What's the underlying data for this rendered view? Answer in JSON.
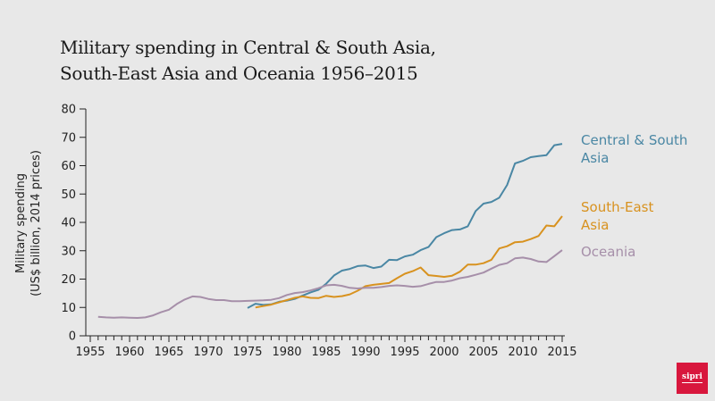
{
  "chart_data": {
    "type": "line",
    "title": "Military spending in Central & South Asia, South-East Asia and Oceania 1956–2015",
    "title_lines": [
      "Military spending in Central & South Asia,",
      "South-East Asia and Oceania 1956–2015"
    ],
    "xlabel": "",
    "ylabel_lines": [
      "Military spending",
      "(US$ billion, 2014 prices)"
    ],
    "xlim": [
      1955,
      2015
    ],
    "ylim": [
      0,
      80
    ],
    "x_ticks": [
      1955,
      1960,
      1965,
      1970,
      1975,
      1980,
      1985,
      1990,
      1995,
      2000,
      2005,
      2010,
      2015
    ],
    "y_ticks": [
      0,
      10,
      20,
      30,
      40,
      50,
      60,
      70,
      80
    ],
    "grid": false,
    "legend_placement": "right, inline labels at line ends",
    "series": [
      {
        "name": "Central & South Asia",
        "label_lines": [
          "Central & South",
          "Asia"
        ],
        "color": "#4a87a4",
        "x": [
          1975,
          1976,
          1977,
          1978,
          1979,
          1980,
          1981,
          1982,
          1983,
          1984,
          1985,
          1986,
          1987,
          1988,
          1989,
          1990,
          1991,
          1992,
          1993,
          1994,
          1995,
          1996,
          1997,
          1998,
          1999,
          2000,
          2001,
          2002,
          2003,
          2004,
          2005,
          2006,
          2007,
          2008,
          2009,
          2010,
          2011,
          2012,
          2013,
          2014,
          2015
        ],
        "values": [
          9.8,
          11.3,
          10.9,
          11.1,
          12.0,
          12.4,
          13.0,
          14.2,
          15.3,
          16.2,
          18.4,
          21.3,
          23.0,
          23.6,
          24.6,
          24.8,
          23.9,
          24.4,
          26.8,
          26.7,
          28.0,
          28.6,
          30.2,
          31.3,
          34.8,
          36.2,
          37.3,
          37.5,
          38.6,
          44.0,
          46.6,
          47.2,
          48.7,
          53.2,
          60.8,
          61.7,
          63.0,
          63.4,
          63.7,
          67.2,
          67.7
        ]
      },
      {
        "name": "South-East Asia",
        "label_lines": [
          "South-East",
          "Asia"
        ],
        "color": "#d8921f",
        "x": [
          1976,
          1977,
          1978,
          1979,
          1980,
          1981,
          1982,
          1983,
          1984,
          1985,
          1986,
          1987,
          1988,
          1989,
          1990,
          1991,
          1992,
          1993,
          1994,
          1995,
          1996,
          1997,
          1998,
          1999,
          2000,
          2001,
          2002,
          2003,
          2004,
          2005,
          2006,
          2007,
          2008,
          2009,
          2010,
          2011,
          2012,
          2013,
          2014,
          2015
        ],
        "values": [
          10.0,
          10.5,
          11.0,
          11.8,
          12.6,
          13.4,
          13.9,
          13.4,
          13.3,
          14.1,
          13.7,
          14.0,
          14.6,
          15.9,
          17.5,
          18.0,
          18.3,
          18.6,
          20.3,
          21.9,
          22.8,
          24.1,
          21.4,
          21.1,
          20.8,
          21.2,
          22.6,
          25.1,
          25.1,
          25.6,
          26.8,
          30.8,
          31.6,
          33.0,
          33.2,
          34.1,
          35.2,
          38.9,
          38.6,
          42.2
        ]
      },
      {
        "name": "Oceania",
        "label_lines": [
          "Oceania"
        ],
        "color": "#a68fa9",
        "x": [
          1956,
          1957,
          1958,
          1959,
          1960,
          1961,
          1962,
          1963,
          1964,
          1965,
          1966,
          1967,
          1968,
          1969,
          1970,
          1971,
          1972,
          1973,
          1974,
          1975,
          1976,
          1977,
          1978,
          1979,
          1980,
          1981,
          1982,
          1983,
          1984,
          1985,
          1986,
          1987,
          1988,
          1989,
          1990,
          1991,
          1992,
          1993,
          1994,
          1995,
          1996,
          1997,
          1998,
          1999,
          2000,
          2001,
          2002,
          2003,
          2004,
          2005,
          2006,
          2007,
          2008,
          2009,
          2010,
          2011,
          2012,
          2013,
          2014,
          2015
        ],
        "values": [
          6.7,
          6.5,
          6.4,
          6.5,
          6.4,
          6.3,
          6.5,
          7.2,
          8.3,
          9.2,
          11.2,
          12.8,
          13.9,
          13.7,
          13.0,
          12.6,
          12.6,
          12.2,
          12.2,
          12.3,
          12.4,
          12.5,
          12.7,
          13.3,
          14.4,
          15.1,
          15.4,
          16.0,
          16.8,
          17.8,
          18.0,
          17.6,
          16.9,
          16.7,
          16.9,
          16.9,
          17.2,
          17.6,
          17.8,
          17.6,
          17.3,
          17.5,
          18.3,
          19.0,
          19.0,
          19.5,
          20.3,
          20.8,
          21.5,
          22.3,
          23.7,
          25.0,
          25.6,
          27.3,
          27.6,
          27.1,
          26.2,
          26.0,
          28.1,
          30.2
        ]
      }
    ],
    "colors": {
      "axis": "#222222",
      "background": "#e8e8e8"
    }
  },
  "branding": {
    "logo_text": "sipri",
    "logo_color": "#d8173d"
  }
}
